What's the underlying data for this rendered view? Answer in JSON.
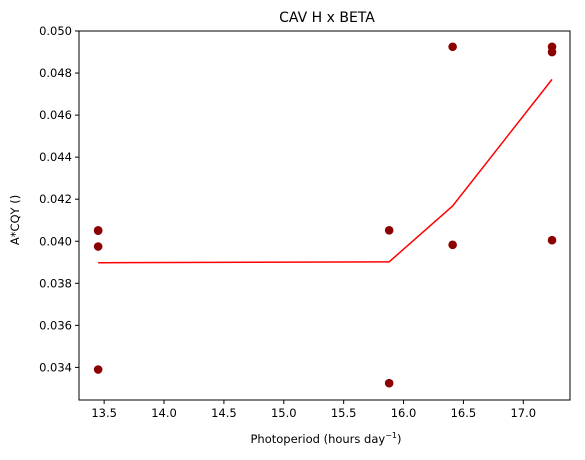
{
  "chart_data": {
    "type": "scatter",
    "title": "CAV H x BETA",
    "xlabel": "Photoperiod (hours day",
    "xlabel_sup": "−1",
    "xlabel_end": ")",
    "ylabel": "A*CQY ()",
    "xlim": [
      13.29,
      17.39
    ],
    "ylim": [
      0.03245,
      0.05
    ],
    "xticks": [
      13.5,
      14.0,
      14.5,
      15.0,
      15.5,
      16.0,
      16.5,
      17.0
    ],
    "xtick_labels": [
      "13.5",
      "14.0",
      "14.5",
      "15.0",
      "15.5",
      "16.0",
      "16.5",
      "17.0"
    ],
    "yticks": [
      0.034,
      0.036,
      0.038,
      0.04,
      0.042,
      0.044,
      0.046,
      0.048,
      0.05
    ],
    "ytick_labels": [
      "0.034",
      "0.036",
      "0.038",
      "0.040",
      "0.042",
      "0.044",
      "0.046",
      "0.048",
      "0.050"
    ],
    "grid": false,
    "series": [
      {
        "kind": "scatter",
        "color": "#8b0000",
        "points": [
          {
            "x": 13.45,
            "y": 0.04052
          },
          {
            "x": 13.45,
            "y": 0.0405
          },
          {
            "x": 13.45,
            "y": 0.03975
          },
          {
            "x": 13.45,
            "y": 0.0339
          },
          {
            "x": 15.88,
            "y": 0.04052
          },
          {
            "x": 15.88,
            "y": 0.03325
          },
          {
            "x": 16.41,
            "y": 0.04925
          },
          {
            "x": 16.41,
            "y": 0.03983
          },
          {
            "x": 17.24,
            "y": 0.04925
          },
          {
            "x": 17.24,
            "y": 0.049
          },
          {
            "x": 17.24,
            "y": 0.04005
          }
        ]
      },
      {
        "kind": "line",
        "color": "#ff0000",
        "points": [
          {
            "x": 13.45,
            "y": 0.03898
          },
          {
            "x": 15.88,
            "y": 0.03902
          },
          {
            "x": 16.41,
            "y": 0.04168
          },
          {
            "x": 17.24,
            "y": 0.0477
          }
        ]
      }
    ]
  }
}
